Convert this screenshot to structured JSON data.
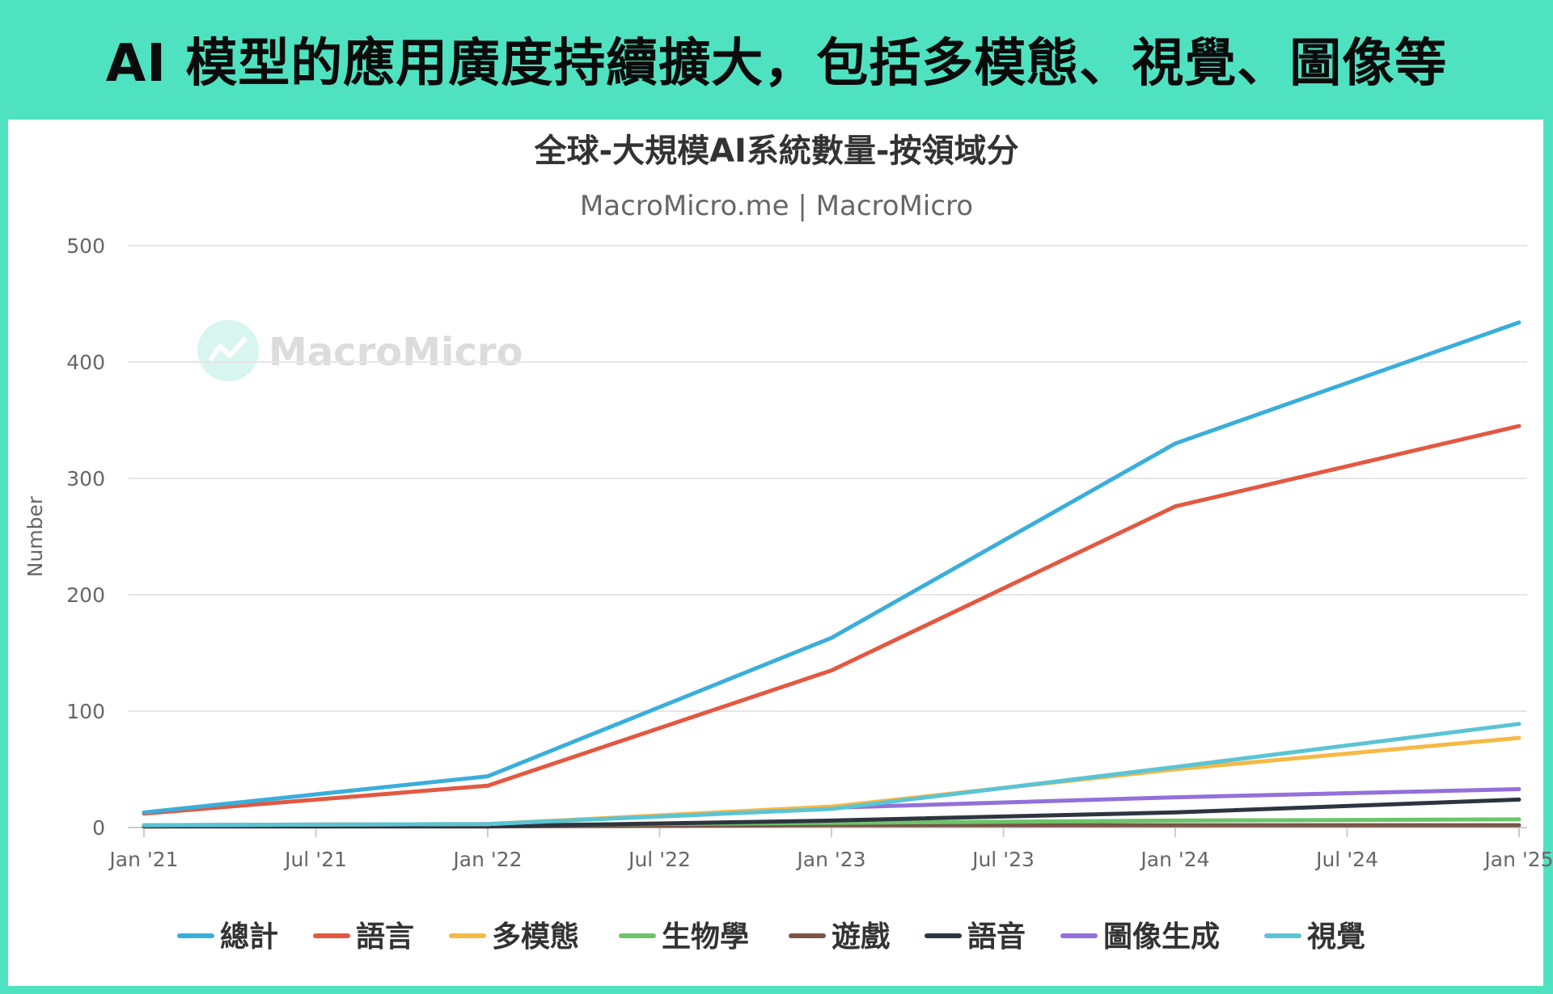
{
  "headline": "AI 模型的應用廣度持續擴大，包括多模態、視覺、圖像等",
  "watermark": "MacroMicro",
  "chart_data": {
    "type": "line",
    "title": "全球-大規模AI系統數量-按領域分",
    "subtitle": "MacroMicro.me | MacroMicro",
    "ylabel": "Number",
    "xlabel": "",
    "x_ticks": [
      "Jan '21",
      "Jul '21",
      "Jan '22",
      "Jul '22",
      "Jan '23",
      "Jul '23",
      "Jan '24",
      "Jul '24",
      "Jan '25"
    ],
    "y_ticks": [
      0,
      100,
      200,
      300,
      400,
      500
    ],
    "xlim": [
      "2021-01",
      "2025-01"
    ],
    "ylim": [
      0,
      500
    ],
    "grid": "horizontal",
    "legend_position": "bottom",
    "x": [
      "2021-01",
      "2022-01",
      "2023-01",
      "2024-01",
      "2025-01"
    ],
    "series": [
      {
        "name": "總計",
        "color": "#3aaedb",
        "values": [
          13,
          44,
          163,
          330,
          434
        ]
      },
      {
        "name": "語言",
        "color": "#e35841",
        "values": [
          12,
          36,
          135,
          276,
          345
        ]
      },
      {
        "name": "多模態",
        "color": "#f5b945",
        "values": [
          2,
          3,
          18,
          50,
          77
        ]
      },
      {
        "name": "生物學",
        "color": "#6cc46a",
        "values": [
          1,
          2,
          4,
          6,
          7
        ]
      },
      {
        "name": "遊戲",
        "color": "#795548",
        "values": [
          1,
          1,
          2,
          2,
          2
        ]
      },
      {
        "name": "語音",
        "color": "#2e3440",
        "values": [
          1,
          1,
          6,
          13,
          24
        ]
      },
      {
        "name": "圖像生成",
        "color": "#9370db",
        "values": [
          2,
          3,
          17,
          26,
          33
        ]
      },
      {
        "name": "視覺",
        "color": "#5bc4d4",
        "values": [
          2,
          3,
          16,
          52,
          89
        ]
      }
    ]
  }
}
